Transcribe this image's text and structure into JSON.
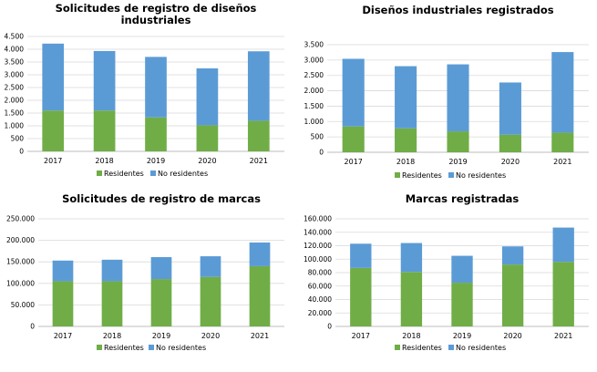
{
  "colors": {
    "residentes": "#70AD47",
    "no_residentes": "#5B9BD5",
    "grid": "#d9d9d9",
    "axis": "#a6a6a6"
  },
  "chart_data": [
    {
      "type": "bar",
      "stacked": true,
      "title_lines": [
        "Solicitudes de registro de diseños",
        "industriales"
      ],
      "categories": [
        "2017",
        "2018",
        "2019",
        "2020",
        "2021"
      ],
      "series": [
        {
          "name": "Residentes",
          "values": [
            1600,
            1600,
            1330,
            1020,
            1200
          ]
        },
        {
          "name": "No residentes",
          "values": [
            2620,
            2330,
            2370,
            2230,
            2720
          ]
        }
      ],
      "ylim": [
        0,
        4500
      ],
      "yticks": [
        0,
        500,
        1000,
        1500,
        2000,
        2500,
        3000,
        3500,
        4000,
        4500
      ],
      "ytick_labels": [
        "0",
        "500",
        "1.000",
        "1.500",
        "2.000",
        "2.500",
        "3.000",
        "3.500",
        "4.000",
        "4.500"
      ],
      "grid": true,
      "legend": "bottom"
    },
    {
      "type": "bar",
      "stacked": true,
      "title_lines": [
        "Diseños industriales registrados"
      ],
      "categories": [
        "2017",
        "2018",
        "2019",
        "2020",
        "2021"
      ],
      "series": [
        {
          "name": "Residentes",
          "values": [
            840,
            780,
            680,
            570,
            640
          ]
        },
        {
          "name": "No residentes",
          "values": [
            2200,
            2020,
            2180,
            1700,
            2620
          ]
        }
      ],
      "ylim": [
        0,
        3500
      ],
      "yticks": [
        0,
        500,
        1000,
        1500,
        2000,
        2500,
        3000,
        3500
      ],
      "ytick_labels": [
        "0",
        "500",
        "1.000",
        "1.500",
        "2.000",
        "2.500",
        "3.000",
        "3.500"
      ],
      "grid": true,
      "legend": "bottom"
    },
    {
      "type": "bar",
      "stacked": true,
      "title_lines": [
        "Solicitudes de registro de marcas"
      ],
      "categories": [
        "2017",
        "2018",
        "2019",
        "2020",
        "2021"
      ],
      "series": [
        {
          "name": "Residentes",
          "values": [
            105000,
            105000,
            110000,
            115000,
            140000
          ]
        },
        {
          "name": "No residentes",
          "values": [
            48000,
            50000,
            51000,
            48000,
            55000
          ]
        }
      ],
      "ylim": [
        0,
        250000
      ],
      "yticks": [
        0,
        50000,
        100000,
        150000,
        200000,
        250000
      ],
      "ytick_labels": [
        "0",
        "50.000",
        "100.000",
        "150.000",
        "200.000",
        "250.000"
      ],
      "grid": true,
      "legend": "bottom"
    },
    {
      "type": "bar",
      "stacked": true,
      "title_lines": [
        "Marcas registradas"
      ],
      "categories": [
        "2017",
        "2018",
        "2019",
        "2020",
        "2021"
      ],
      "series": [
        {
          "name": "Residentes",
          "values": [
            87000,
            81000,
            65000,
            92000,
            96000
          ]
        },
        {
          "name": "No residentes",
          "values": [
            36000,
            43000,
            40000,
            27000,
            51000
          ]
        }
      ],
      "ylim": [
        0,
        160000
      ],
      "yticks": [
        0,
        20000,
        40000,
        60000,
        80000,
        100000,
        120000,
        140000,
        160000
      ],
      "ytick_labels": [
        "0",
        "20.000",
        "40.000",
        "60.000",
        "80.000",
        "100.000",
        "120.000",
        "140.000",
        "160.000"
      ],
      "grid": true,
      "legend": "bottom"
    }
  ]
}
